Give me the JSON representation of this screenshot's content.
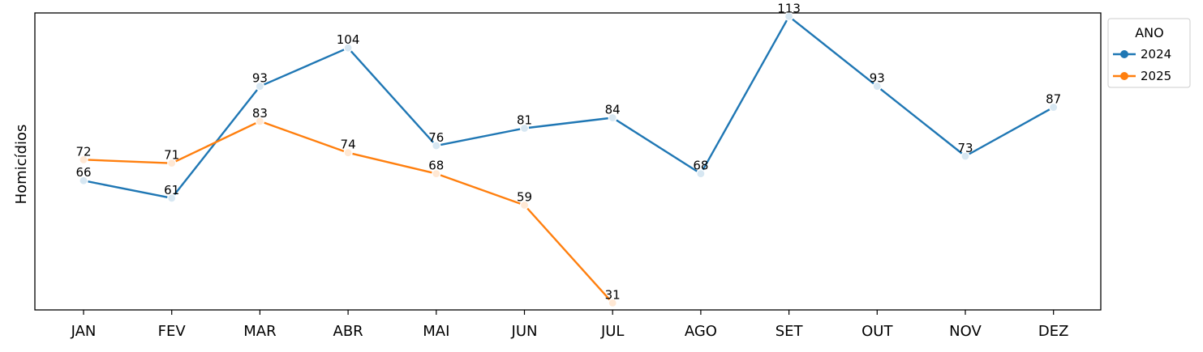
{
  "chart_data": {
    "type": "line",
    "ylabel": "Homicídios",
    "xlabel": "",
    "categories": [
      "JAN",
      "FEV",
      "MAR",
      "ABR",
      "MAI",
      "JUN",
      "JUL",
      "AGO",
      "SET",
      "OUT",
      "NOV",
      "DEZ"
    ],
    "ylim": [
      29,
      114
    ],
    "grid": false,
    "y_ticks_visible": false,
    "legend": {
      "title": "ANO",
      "placement": "right-top-outside"
    },
    "series": [
      {
        "name": "2024",
        "color": "#1f77b4",
        "values": [
          66,
          61,
          93,
          104,
          76,
          81,
          84,
          68,
          113,
          93,
          73,
          87
        ]
      },
      {
        "name": "2025",
        "color": "#ff7f0e",
        "values": [
          72,
          71,
          83,
          74,
          68,
          59,
          31,
          null,
          null,
          null,
          null,
          null
        ]
      }
    ]
  }
}
